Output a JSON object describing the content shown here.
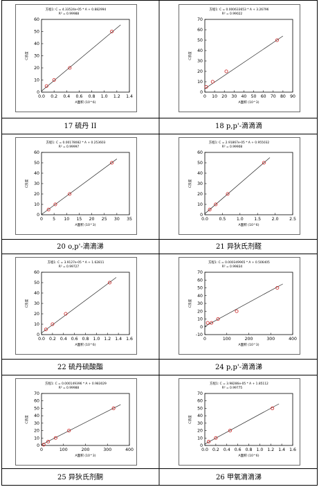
{
  "chart_data": [
    {
      "type": "scatter",
      "equation": "方程1: C = 4.33524e-05 * A + 0.882994",
      "r2": "R² = 0.99988",
      "xlabel": "A面积 (10^6)",
      "ylabel": "C浓度",
      "xlim": [
        0,
        1.4
      ],
      "ylim": [
        0,
        60
      ],
      "xticks": [
        "0.0",
        "0.2",
        "0.4",
        "0.6",
        "0.8",
        "1.0",
        "1.2",
        "1.4"
      ],
      "yticks": [
        "0",
        "10",
        "20",
        "30",
        "40",
        "50",
        "60"
      ],
      "points": [
        [
          0.08,
          5
        ],
        [
          0.2,
          10
        ],
        [
          0.45,
          20
        ],
        [
          1.12,
          50
        ]
      ],
      "fit": [
        [
          0.0,
          0.88
        ],
        [
          1.26,
          55.5
        ]
      ],
      "caption": ""
    },
    {
      "type": "scatter",
      "equation": "方程1: C = 0.000633653 * A + 3.26796",
      "r2": "R² = 0.99022",
      "xlabel": "A面积 (10^3)",
      "ylabel": "C浓度",
      "xlim": [
        0,
        90
      ],
      "ylim": [
        0,
        70
      ],
      "xticks": [
        "0",
        "10",
        "20",
        "30",
        "40",
        "50",
        "60",
        "70",
        "80",
        "90"
      ],
      "yticks": [
        "0",
        "10",
        "20",
        "30",
        "40",
        "50",
        "60",
        "70"
      ],
      "points": [
        [
          1.5,
          5
        ],
        [
          8,
          10
        ],
        [
          22,
          20
        ],
        [
          74,
          50
        ]
      ],
      "fit": [
        [
          0,
          3.3
        ],
        [
          80,
          54
        ]
      ],
      "caption": ""
    },
    {
      "type": "scatter",
      "equation": "方程1: C = 0.00178082 * A + 0.253603",
      "r2": "R² = 0.99997",
      "xlabel": "A面积 (10^3)",
      "ylabel": "C浓度",
      "xlim": [
        0,
        35
      ],
      "ylim": [
        0,
        60
      ],
      "xticks": [
        "0",
        "5",
        "10",
        "15",
        "20",
        "25",
        "30",
        "35"
      ],
      "yticks": [
        "0",
        "10",
        "20",
        "30",
        "40",
        "50",
        "60"
      ],
      "points": [
        [
          2.8,
          5
        ],
        [
          5.5,
          10
        ],
        [
          11.2,
          20
        ],
        [
          28,
          50
        ]
      ],
      "fit": [
        [
          0,
          0.25
        ],
        [
          30,
          53.7
        ]
      ],
      "caption": "17 硫丹 II"
    },
    {
      "type": "scatter",
      "equation": "方程1: C = 2.91867e-05 * A + 0.955032",
      "r2": "R² = 0.99908",
      "xlabel": "A面积 (10^6)",
      "ylabel": "C浓度",
      "xlim": [
        0,
        2.5
      ],
      "ylim": [
        0,
        60
      ],
      "xticks": [
        "0.0",
        "0.5",
        "1.0",
        "1.5",
        "2.0",
        "2.5"
      ],
      "yticks": [
        "0",
        "10",
        "20",
        "30",
        "40",
        "50",
        "60"
      ],
      "points": [
        [
          0.14,
          5
        ],
        [
          0.31,
          10
        ],
        [
          0.65,
          20
        ],
        [
          1.68,
          50
        ]
      ],
      "fit": [
        [
          0,
          0.96
        ],
        [
          1.85,
          55
        ]
      ],
      "caption": "18 p,p'-滴滴滴"
    },
    {
      "type": "scatter",
      "equation": "方程1: C = 3.9127e-05 * A + 1.62811",
      "r2": "R² = 0.99727",
      "xlabel": "A面积 (10^6)",
      "ylabel": "C浓度",
      "xlim": [
        0,
        1.6
      ],
      "ylim": [
        0,
        60
      ],
      "xticks": [
        "0.0",
        "0.2",
        "0.4",
        "0.6",
        "0.8",
        "1.0",
        "1.2",
        "1.4",
        "1.6"
      ],
      "yticks": [
        "0",
        "10",
        "20",
        "30",
        "40",
        "50",
        "60"
      ],
      "points": [
        [
          0.08,
          5
        ],
        [
          0.2,
          10
        ],
        [
          0.44,
          20
        ],
        [
          1.24,
          50
        ]
      ],
      "fit": [
        [
          0,
          1.6
        ],
        [
          1.36,
          55
        ]
      ],
      "caption": "20 o,p'-滴滴涕"
    },
    {
      "type": "scatter",
      "equation": "方程1: C = 0.000349965 * A + 0.506405",
      "r2": "R² = 0.99834",
      "xlabel": "A面积 (10^3)",
      "ylabel": "C浓度",
      "xlim": [
        0,
        400
      ],
      "ylim": [
        -10,
        70
      ],
      "xticks": [
        "0",
        "100",
        "200",
        "300",
        "400"
      ],
      "yticks": [
        "-10",
        "0",
        "10",
        "20",
        "30",
        "40",
        "50",
        "60",
        "70"
      ],
      "points": [
        [
          13,
          5
        ],
        [
          30,
          5
        ],
        [
          60,
          10
        ],
        [
          145,
          20
        ],
        [
          330,
          50
        ]
      ],
      "fit": [
        [
          0,
          0.5
        ],
        [
          355,
          55
        ]
      ],
      "caption": "21 异狄氏剂醛"
    },
    {
      "type": "scatter",
      "equation": "方程1: C = 0.000149396 * A + 0.983029",
      "r2": "R² = 0.99988",
      "xlabel": "A面积 (10^3)",
      "ylabel": "C浓度",
      "xlim": [
        0,
        400
      ],
      "ylim": [
        0,
        70
      ],
      "xticks": [
        "0",
        "100",
        "200",
        "300",
        "400"
      ],
      "yticks": [
        "0",
        "10",
        "20",
        "30",
        "40",
        "50",
        "60",
        "70"
      ],
      "points": [
        [
          10,
          1
        ],
        [
          30,
          5
        ],
        [
          64,
          10
        ],
        [
          125,
          20
        ],
        [
          328,
          50
        ]
      ],
      "fit": [
        [
          0,
          0.98
        ],
        [
          360,
          55
        ]
      ],
      "caption": "22 硫丹硫酸酯"
    },
    {
      "type": "scatter",
      "equation": "方程1: C = 3.98286e-05 * A + 1.85112",
      "r2": "R² = 0.99775",
      "xlabel": "A面积 (10^6)",
      "ylabel": "C浓度",
      "xlim": [
        0,
        1.6
      ],
      "ylim": [
        0,
        70
      ],
      "xticks": [
        "0.0",
        "0.2",
        "0.4",
        "0.6",
        "0.8",
        "1.0",
        "1.2",
        "1.4",
        "1.6"
      ],
      "yticks": [
        "0",
        "10",
        "20",
        "30",
        "40",
        "50",
        "60",
        "70"
      ],
      "points": [
        [
          0.07,
          5
        ],
        [
          0.2,
          10
        ],
        [
          0.46,
          20
        ],
        [
          1.23,
          50
        ]
      ],
      "fit": [
        [
          0,
          1.85
        ],
        [
          1.35,
          56
        ]
      ],
      "caption": "24 p,p'-滴滴涕"
    }
  ],
  "extra_captions": [
    "25 异狄氏剂酮",
    "26 甲氧滴滴涕"
  ],
  "colors": {
    "point": "#cc2020",
    "line": "#222222",
    "frame": "#000000"
  }
}
